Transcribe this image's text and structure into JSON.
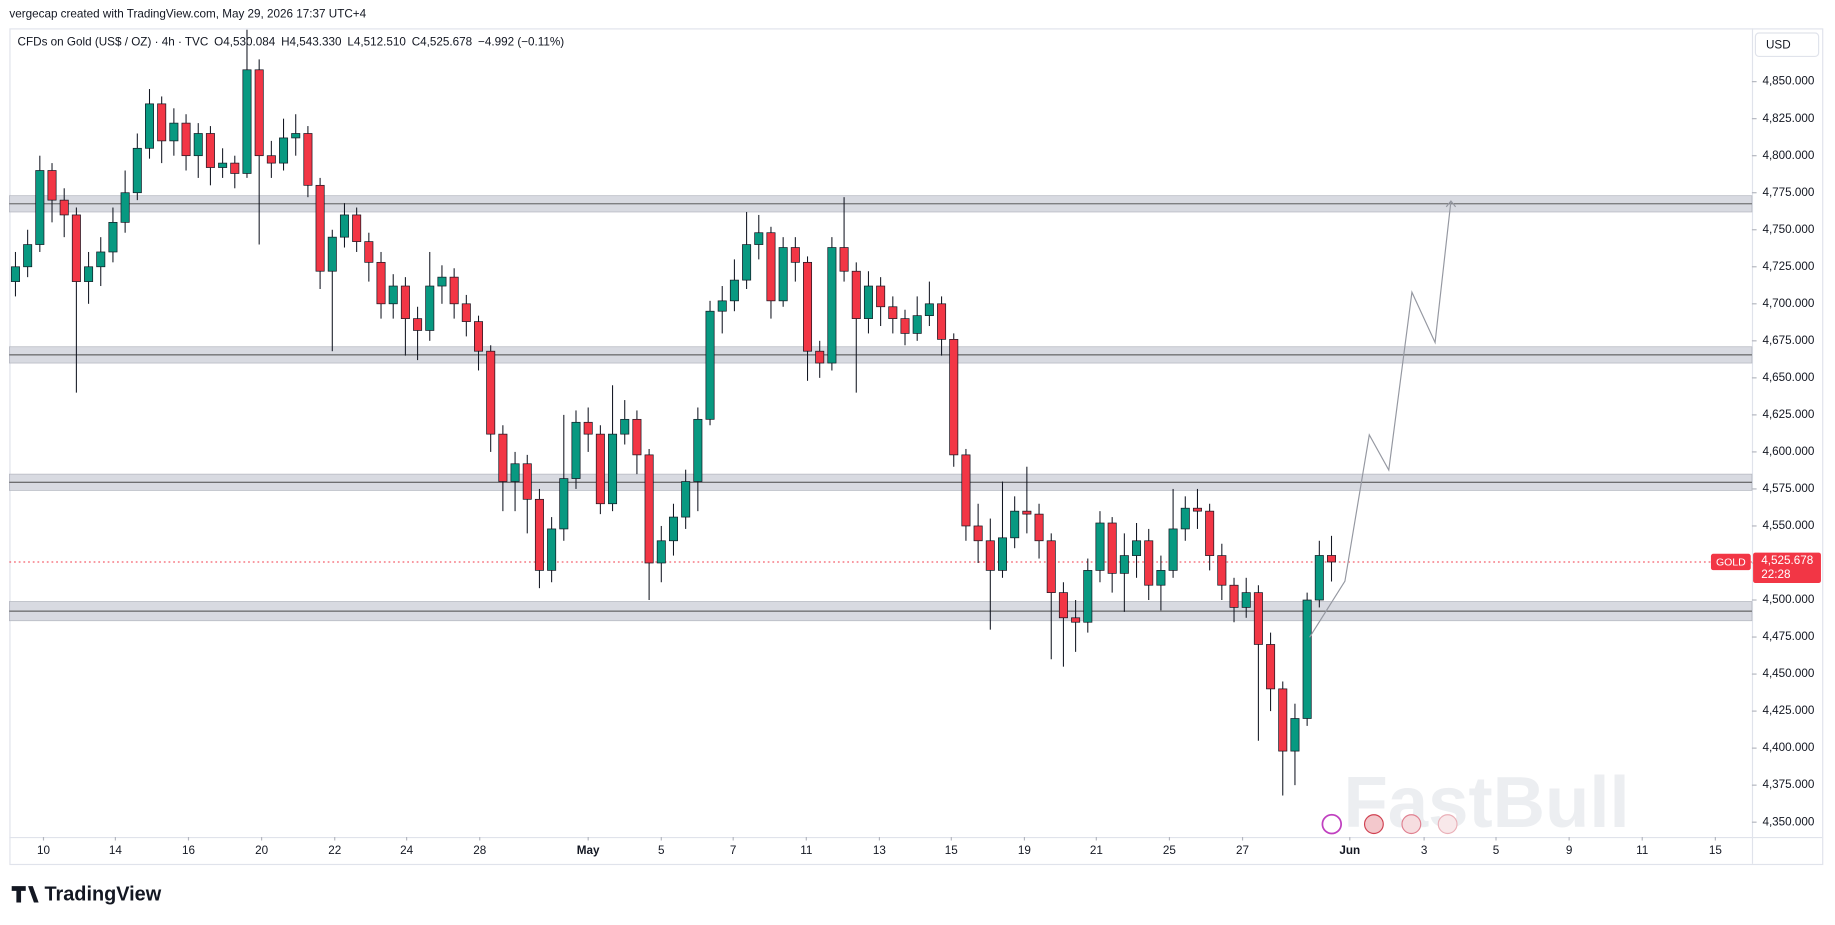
{
  "chart_data": {
    "type": "candlestick",
    "credit": "vergecap created with TradingView.com, May 29, 2026 17:37 UTC+4",
    "title": "CFDs on Gold (US$ / OZ) · 4h · TVC",
    "legend_values": [
      "O4,530.084",
      "H4,543.330",
      "L4,512.510",
      "C4,525.678",
      "−4.992 (−0.11%)"
    ],
    "currency": "USD",
    "symbol": "GOLD",
    "countdown": "22:28",
    "brand": "TradingView",
    "watermark": "FastBull",
    "up_color": "#089981",
    "down_color": "#f23645",
    "last_price": 4525.678,
    "last_price_label": "4,525.678",
    "ylim": [
      4340,
      4886
    ],
    "xlim": [
      -0.5,
      142.5
    ],
    "yticks": [
      {
        "value": 4350,
        "label": "4,350.000"
      },
      {
        "value": 4375,
        "label": "4,375.000"
      },
      {
        "value": 4400,
        "label": "4,400.000"
      },
      {
        "value": 4425,
        "label": "4,425.000"
      },
      {
        "value": 4450,
        "label": "4,450.000"
      },
      {
        "value": 4475,
        "label": "4,475.000"
      },
      {
        "value": 4500,
        "label": "4,500.000"
      },
      {
        "value": 4525,
        "label": "4,525.000"
      },
      {
        "value": 4550,
        "label": "4,550.000"
      },
      {
        "value": 4575,
        "label": "4,575.000"
      },
      {
        "value": 4600,
        "label": "4,600.000"
      },
      {
        "value": 4625,
        "label": "4,625.000"
      },
      {
        "value": 4650,
        "label": "4,650.000"
      },
      {
        "value": 4675,
        "label": "4,675.000"
      },
      {
        "value": 4700,
        "label": "4,700.000"
      },
      {
        "value": 4725,
        "label": "4,725.000"
      },
      {
        "value": 4750,
        "label": "4,750.000"
      },
      {
        "value": 4775,
        "label": "4,775.000"
      },
      {
        "value": 4800,
        "label": "4,800.000"
      },
      {
        "value": 4825,
        "label": "4,825.000"
      },
      {
        "value": 4850,
        "label": "4,850.000"
      }
    ],
    "xticks": [
      {
        "value": 2.3,
        "label": "10"
      },
      {
        "value": 8.2,
        "label": "14"
      },
      {
        "value": 14.2,
        "label": "16"
      },
      {
        "value": 20.2,
        "label": "20"
      },
      {
        "value": 26.2,
        "label": "22"
      },
      {
        "value": 32.1,
        "label": "24"
      },
      {
        "value": 38.1,
        "label": "28"
      },
      {
        "value": 47.0,
        "label": "May"
      },
      {
        "value": 53.0,
        "label": "5"
      },
      {
        "value": 58.9,
        "label": "7"
      },
      {
        "value": 64.9,
        "label": "11"
      },
      {
        "value": 70.9,
        "label": "13"
      },
      {
        "value": 76.8,
        "label": "15"
      },
      {
        "value": 82.8,
        "label": "19"
      },
      {
        "value": 88.7,
        "label": "21"
      },
      {
        "value": 94.7,
        "label": "25"
      },
      {
        "value": 100.7,
        "label": "27"
      },
      {
        "value": 109.5,
        "label": "Jun"
      },
      {
        "value": 115.6,
        "label": "3"
      },
      {
        "value": 121.5,
        "label": "5"
      },
      {
        "value": 127.5,
        "label": "9"
      },
      {
        "value": 133.5,
        "label": "11"
      },
      {
        "value": 139.5,
        "label": "15"
      }
    ],
    "zones": [
      {
        "low": 4762,
        "high": 4773
      },
      {
        "low": 4660,
        "high": 4671
      },
      {
        "low": 4574,
        "high": 4585
      },
      {
        "low": 4486,
        "high": 4499
      }
    ],
    "projection": {
      "x": [
        106.2,
        109.1,
        111.1,
        112.7,
        114.6,
        116.5,
        117.8
      ],
      "y": [
        4474.8,
        4512.7,
        4611.5,
        4587.8,
        4707.8,
        4673.9,
        4769.4
      ]
    },
    "open": [
      4715,
      4725,
      4740,
      4790,
      4770,
      4760,
      4715,
      4725,
      4735,
      4755,
      4775,
      4805,
      4835,
      4810,
      4822,
      4800,
      4815,
      4792,
      4795,
      4788,
      4858,
      4800,
      4795,
      4812,
      4815,
      4780,
      4722,
      4745,
      4760,
      4742,
      4728,
      4700,
      4712,
      4690,
      4682,
      4712,
      4718,
      4700,
      4688,
      4668,
      4612,
      4580,
      4592,
      4568,
      4520,
      4548,
      4582,
      4620,
      4612,
      4565,
      4612,
      4622,
      4598,
      4525,
      4540,
      4556,
      4580,
      4622,
      4695,
      4702,
      4716,
      4740,
      4748,
      4702,
      4738,
      4728,
      4668,
      4660,
      4738,
      4722,
      4690,
      4712,
      4698,
      4690,
      4680,
      4692,
      4700,
      4676,
      4598,
      4550,
      4540,
      4520,
      4542,
      4560,
      4558,
      4540,
      4505,
      4488,
      4485,
      4520,
      4552,
      4518,
      4530,
      4540,
      4510,
      4520,
      4548,
      4562,
      4560,
      4530,
      4510,
      4495,
      4505,
      4470,
      4440,
      4398,
      4420,
      4500,
      4530.084
    ],
    "high": [
      4735,
      4750,
      4800,
      4795,
      4778,
      4765,
      4735,
      4745,
      4765,
      4790,
      4815,
      4845,
      4840,
      4832,
      4828,
      4822,
      4820,
      4805,
      4800,
      4885,
      4865,
      4810,
      4825,
      4828,
      4820,
      4785,
      4750,
      4768,
      4765,
      4748,
      4735,
      4720,
      4718,
      4698,
      4735,
      4726,
      4724,
      4706,
      4692,
      4672,
      4618,
      4600,
      4598,
      4575,
      4556,
      4625,
      4628,
      4630,
      4618,
      4645,
      4635,
      4628,
      4602,
      4550,
      4565,
      4588,
      4630,
      4702,
      4712,
      4730,
      4762,
      4760,
      4752,
      4745,
      4745,
      4732,
      4675,
      4745,
      4772,
      4728,
      4722,
      4718,
      4705,
      4696,
      4705,
      4715,
      4705,
      4680,
      4602,
      4565,
      4555,
      4580,
      4570,
      4590,
      4565,
      4545,
      4512,
      4500,
      4528,
      4560,
      4556,
      4545,
      4552,
      4548,
      4530,
      4575,
      4570,
      4575,
      4565,
      4538,
      4515,
      4515,
      4510,
      4478,
      4445,
      4430,
      4505,
      4540,
      4543.33
    ],
    "low": [
      4705,
      4718,
      4735,
      4755,
      4745,
      4640,
      4700,
      4712,
      4728,
      4748,
      4770,
      4798,
      4795,
      4800,
      4790,
      4785,
      4780,
      4785,
      4778,
      4785,
      4740,
      4785,
      4790,
      4800,
      4772,
      4710,
      4668,
      4738,
      4735,
      4715,
      4690,
      4690,
      4665,
      4662,
      4675,
      4700,
      4690,
      4678,
      4655,
      4600,
      4560,
      4560,
      4545,
      4508,
      4512,
      4540,
      4575,
      4600,
      4558,
      4560,
      4605,
      4585,
      4500,
      4512,
      4530,
      4548,
      4560,
      4618,
      4680,
      4695,
      4710,
      4730,
      4690,
      4698,
      4715,
      4648,
      4650,
      4655,
      4715,
      4640,
      4680,
      4685,
      4680,
      4672,
      4675,
      4685,
      4665,
      4590,
      4540,
      4525,
      4480,
      4515,
      4535,
      4545,
      4528,
      4460,
      4455,
      4465,
      4478,
      4512,
      4505,
      4492,
      4515,
      4500,
      4493,
      4515,
      4540,
      4548,
      4520,
      4500,
      4485,
      4488,
      4405,
      4425,
      4368,
      4375,
      4415,
      4495,
      4512.51
    ],
    "close": [
      4725,
      4740,
      4790,
      4770,
      4760,
      4715,
      4725,
      4735,
      4755,
      4775,
      4805,
      4835,
      4810,
      4822,
      4800,
      4815,
      4792,
      4795,
      4788,
      4858,
      4800,
      4795,
      4812,
      4815,
      4780,
      4722,
      4745,
      4760,
      4742,
      4728,
      4700,
      4712,
      4690,
      4682,
      4712,
      4718,
      4700,
      4688,
      4668,
      4612,
      4580,
      4592,
      4568,
      4520,
      4548,
      4582,
      4620,
      4612,
      4565,
      4612,
      4622,
      4598,
      4525,
      4540,
      4556,
      4580,
      4622,
      4695,
      4702,
      4716,
      4740,
      4748,
      4702,
      4738,
      4728,
      4668,
      4660,
      4738,
      4722,
      4690,
      4712,
      4698,
      4690,
      4680,
      4692,
      4700,
      4676,
      4598,
      4550,
      4540,
      4520,
      4542,
      4560,
      4558,
      4540,
      4505,
      4488,
      4485,
      4520,
      4552,
      4518,
      4530,
      4540,
      4510,
      4520,
      4548,
      4562,
      4560,
      4530,
      4510,
      4495,
      4505,
      4470,
      4440,
      4398,
      4420,
      4500,
      4530.084,
      4525.678
    ]
  }
}
